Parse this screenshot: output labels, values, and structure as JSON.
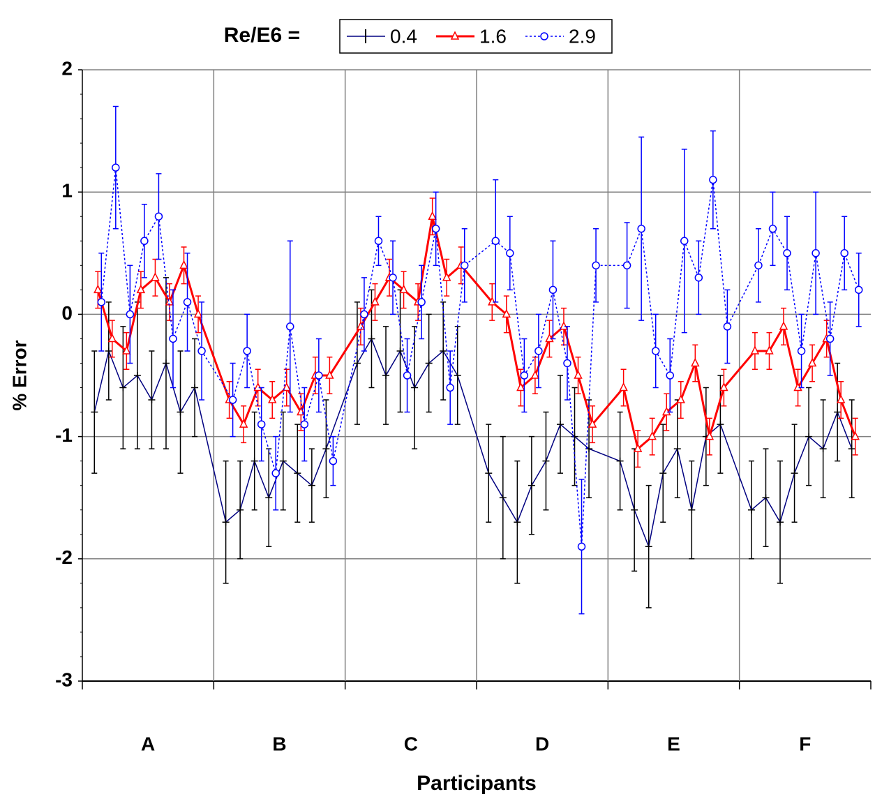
{
  "chart_data": {
    "type": "errorline",
    "legend_title": "Re/E6 =",
    "ylabel": "% Error",
    "xlabel": "Participants",
    "groups": [
      "A",
      "B",
      "C",
      "D",
      "E",
      "F"
    ],
    "ylim": [
      -3,
      2
    ],
    "yticks": [
      -3,
      -2,
      -1,
      0,
      1,
      2
    ],
    "grid": true,
    "series": [
      {
        "name": "0.4",
        "color": "#000080",
        "error_color": "#000000",
        "marker": "plus",
        "values": [
          -0.8,
          -0.3,
          -0.6,
          -0.5,
          -0.7,
          -0.4,
          -0.8,
          -0.6,
          -1.7,
          -1.6,
          -1.2,
          -1.5,
          -1.2,
          -1.3,
          -1.4,
          -1.1,
          -0.4,
          -0.2,
          -0.5,
          -0.3,
          -0.6,
          -0.4,
          -0.3,
          -0.5,
          -1.3,
          -1.5,
          -1.7,
          -1.4,
          -1.2,
          -0.9,
          -1.0,
          -1.1,
          -1.2,
          -1.6,
          -1.9,
          -1.3,
          -1.1,
          -1.6,
          -1.0,
          -0.9,
          -1.6,
          -1.5,
          -1.7,
          -1.3,
          -1.0,
          -1.1,
          -0.8,
          -1.1
        ],
        "errors": [
          0.5,
          0.4,
          0.5,
          0.6,
          0.4,
          0.7,
          0.5,
          0.4,
          0.5,
          0.4,
          0.4,
          0.4,
          0.4,
          0.4,
          0.3,
          0.4,
          0.5,
          0.4,
          0.4,
          0.5,
          0.5,
          0.4,
          0.4,
          0.4,
          0.4,
          0.5,
          0.5,
          0.4,
          0.4,
          0.4,
          0.4,
          0.4,
          0.4,
          0.5,
          0.5,
          0.4,
          0.4,
          0.4,
          0.4,
          0.4,
          0.4,
          0.4,
          0.5,
          0.4,
          0.4,
          0.4,
          0.4,
          0.4
        ]
      },
      {
        "name": "1.6",
        "color": "#ff0000",
        "error_color": "#ff0000",
        "marker": "triangle",
        "values": [
          0.2,
          -0.2,
          -0.3,
          0.2,
          0.3,
          0.1,
          0.4,
          0.0,
          -0.7,
          -0.9,
          -0.6,
          -0.7,
          -0.6,
          -0.8,
          -0.5,
          -0.5,
          -0.1,
          0.1,
          0.3,
          0.2,
          0.1,
          0.8,
          0.3,
          0.4,
          0.1,
          0.0,
          -0.6,
          -0.5,
          -0.2,
          -0.1,
          -0.5,
          -0.9,
          -0.6,
          -1.1,
          -1.0,
          -0.8,
          -0.7,
          -0.4,
          -1.0,
          -0.6,
          -0.3,
          -0.3,
          -0.1,
          -0.6,
          -0.4,
          -0.2,
          -0.7,
          -1.0
        ],
        "errors": [
          0.15,
          0.15,
          0.15,
          0.15,
          0.15,
          0.15,
          0.15,
          0.15,
          0.15,
          0.15,
          0.15,
          0.15,
          0.15,
          0.15,
          0.15,
          0.15,
          0.15,
          0.15,
          0.15,
          0.15,
          0.15,
          0.15,
          0.15,
          0.15,
          0.15,
          0.15,
          0.15,
          0.15,
          0.15,
          0.15,
          0.15,
          0.15,
          0.15,
          0.15,
          0.15,
          0.15,
          0.15,
          0.15,
          0.15,
          0.15,
          0.15,
          0.15,
          0.15,
          0.15,
          0.15,
          0.15,
          0.15,
          0.15
        ]
      },
      {
        "name": "2.9",
        "color": "#0000ff",
        "error_color": "#0000ff",
        "marker": "circle",
        "values": [
          0.1,
          1.2,
          0.0,
          0.6,
          0.8,
          -0.2,
          0.1,
          -0.3,
          -0.7,
          -0.3,
          -0.9,
          -1.3,
          -0.1,
          -0.9,
          -0.5,
          -1.2,
          0.0,
          0.6,
          0.3,
          -0.5,
          0.1,
          0.7,
          -0.6,
          0.4,
          0.6,
          0.5,
          -0.5,
          -0.3,
          0.2,
          -0.4,
          -1.9,
          0.4,
          0.4,
          0.7,
          -0.3,
          -0.5,
          0.6,
          0.3,
          1.1,
          -0.1,
          0.4,
          0.7,
          0.5,
          -0.3,
          0.5,
          -0.2,
          0.5,
          0.2
        ],
        "errors": [
          0.4,
          0.5,
          0.4,
          0.3,
          0.35,
          0.4,
          0.4,
          0.4,
          0.3,
          0.3,
          0.3,
          0.3,
          0.7,
          0.3,
          0.3,
          0.2,
          0.3,
          0.2,
          0.3,
          0.3,
          0.3,
          0.3,
          0.3,
          0.3,
          0.5,
          0.3,
          0.3,
          0.3,
          0.4,
          0.3,
          0.55,
          0.3,
          0.35,
          0.75,
          0.3,
          0.3,
          0.75,
          0.3,
          0.4,
          0.3,
          0.3,
          0.3,
          0.3,
          0.3,
          0.5,
          0.3,
          0.3,
          0.3
        ]
      }
    ]
  }
}
